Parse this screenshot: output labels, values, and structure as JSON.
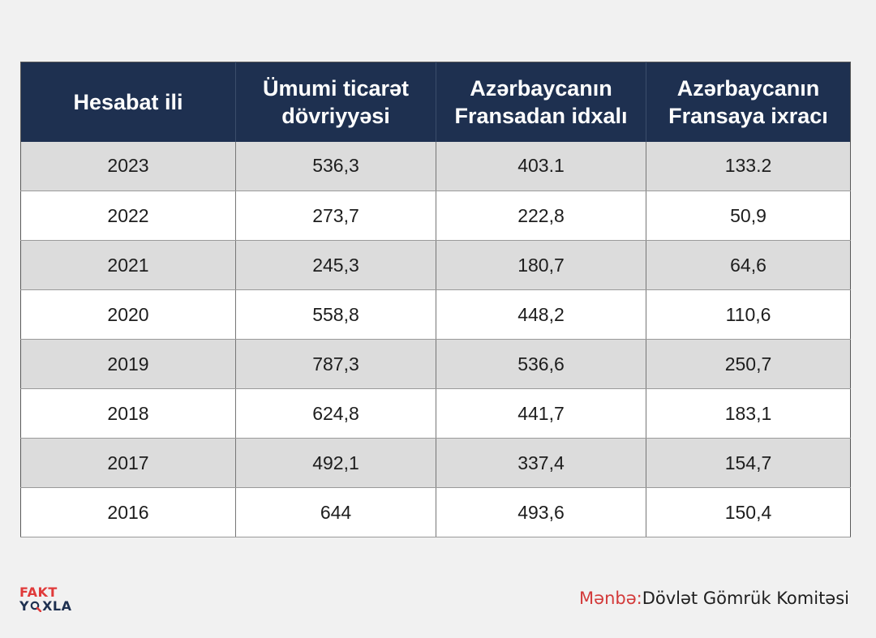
{
  "chart_data": {
    "type": "table",
    "columns": [
      "Hesabat ili",
      "Ümumi ticarət dövriyyəsi",
      "Azərbaycanın Fransadan idxalı",
      "Azərbaycanın Fransaya ixracı"
    ],
    "rows": [
      [
        "2023",
        "536,3",
        "403.1",
        "133.2"
      ],
      [
        "2022",
        "273,7",
        "222,8",
        "50,9"
      ],
      [
        "2021",
        "245,3",
        "180,7",
        "64,6"
      ],
      [
        "2020",
        "558,8",
        "448,2",
        "110,6"
      ],
      [
        "2019",
        "787,3",
        "536,6",
        "250,7"
      ],
      [
        "2018",
        "624,8",
        "441,7",
        "183,1"
      ],
      [
        "2017",
        "492,1",
        "337,4",
        "154,7"
      ],
      [
        "2016",
        "644",
        "493,6",
        "150,4"
      ]
    ]
  },
  "header_colors": {
    "background": "#1e3050",
    "text": "#ffffff",
    "accent": "#e03a3a"
  },
  "logo": {
    "line1": "FAKT",
    "line2_prefix": "Y",
    "line2_suffix": "XLA",
    "icon": "magnifier-icon"
  },
  "source": {
    "label": "Mənbə:",
    "value": "Dövlət Gömrük Komitəsi"
  }
}
